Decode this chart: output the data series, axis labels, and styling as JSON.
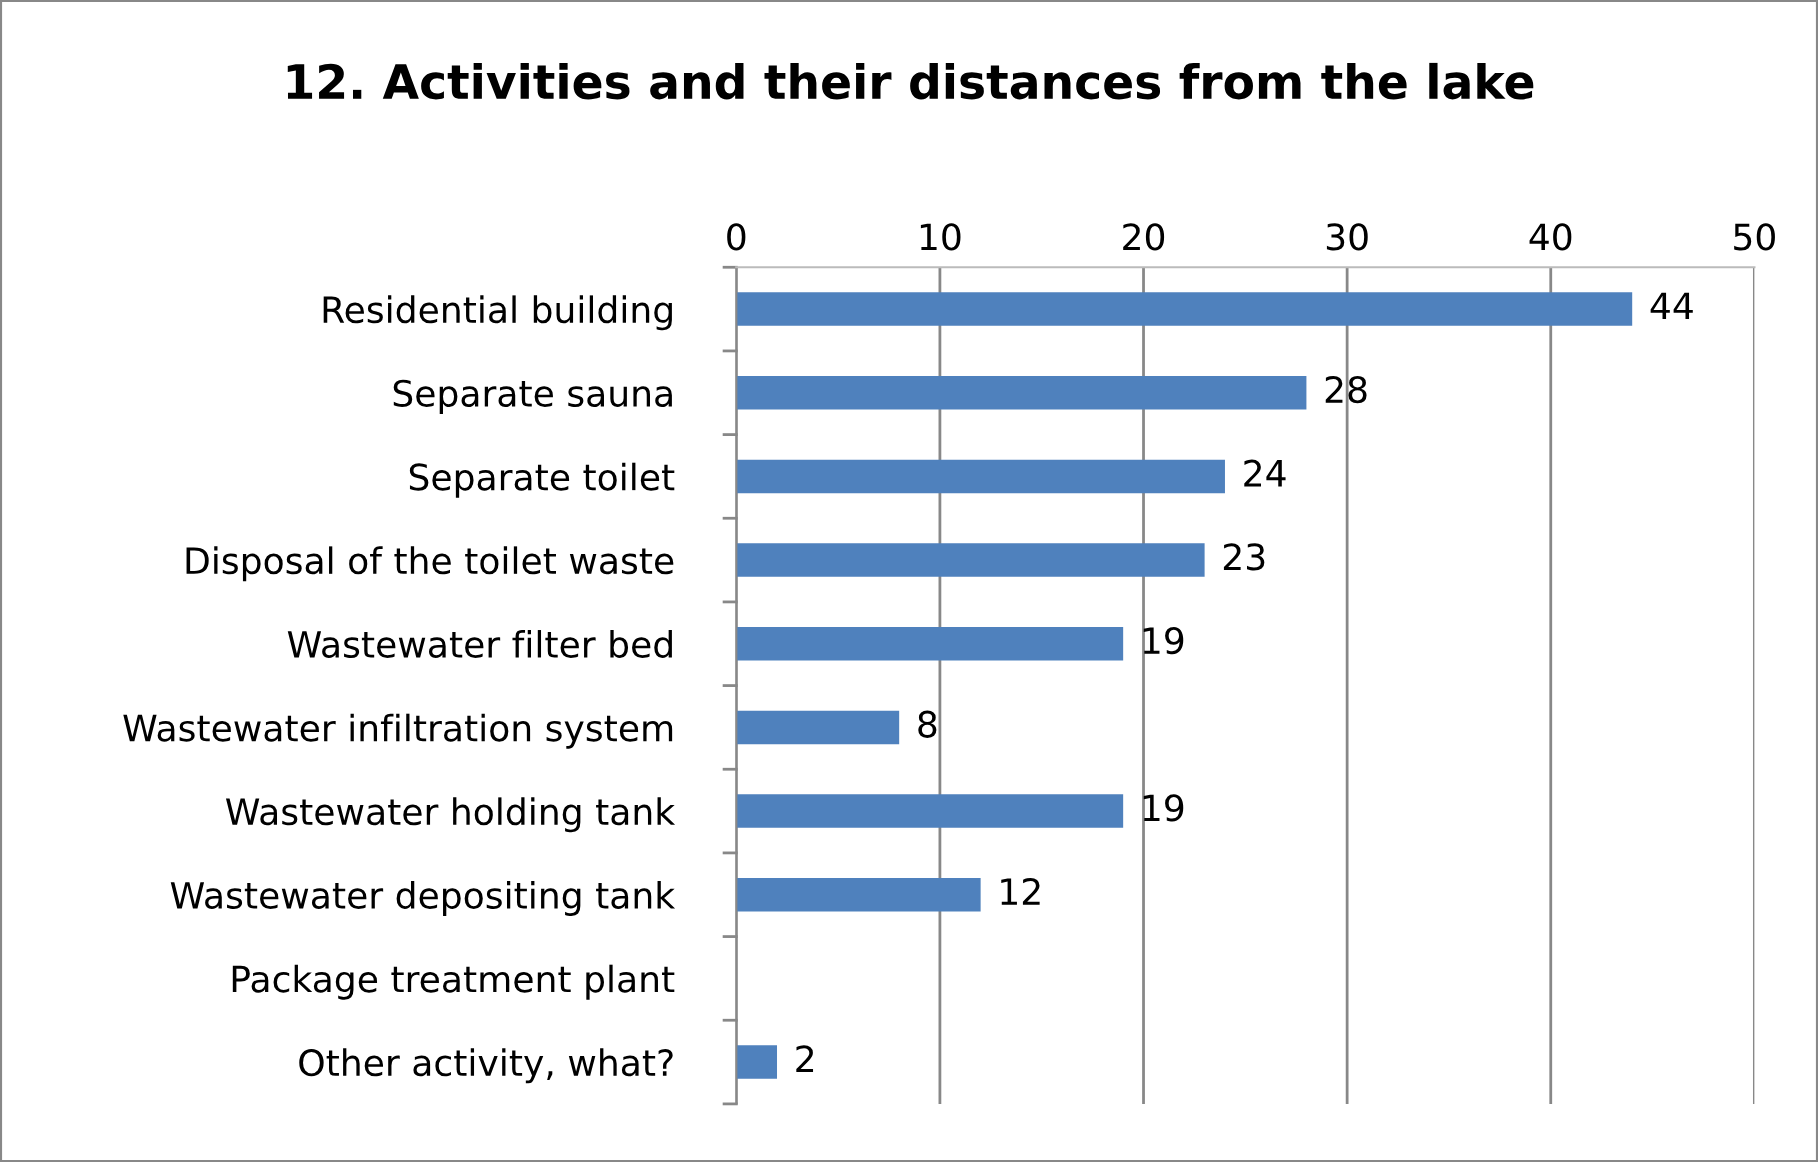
{
  "chart_data": {
    "type": "bar",
    "orientation": "horizontal",
    "title": "12. Activities and their distances from the lake",
    "categories": [
      "Residential building",
      "Separate sauna",
      "Separate toilet",
      "Disposal of the toilet waste",
      "Wastewater filter bed",
      "Wastewater infiltration system",
      "Wastewater holding tank",
      "Wastewater depositing tank",
      "Package treatment plant",
      "Other activity, what?"
    ],
    "values": [
      44,
      28,
      24,
      23,
      19,
      8,
      19,
      12,
      null,
      2
    ],
    "color": "#4f81bd",
    "xlim": [
      0,
      50
    ],
    "xticks": [
      0,
      10,
      20,
      30,
      40,
      50
    ],
    "grid": "x",
    "data_labels": true,
    "legend": false
  }
}
